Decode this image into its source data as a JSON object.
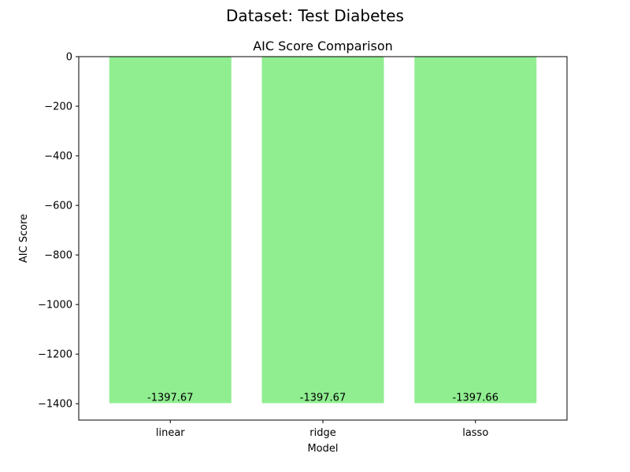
{
  "suptitle": "Dataset: Test Diabetes",
  "chart_data": {
    "type": "bar",
    "title": "AIC Score Comparison",
    "xlabel": "Model",
    "ylabel": "AIC Score",
    "categories": [
      "linear",
      "ridge",
      "lasso"
    ],
    "values": [
      -1397.67,
      -1397.67,
      -1397.66
    ],
    "value_labels": [
      "-1397.67",
      "-1397.67",
      "-1397.66"
    ],
    "ylim": [
      -1466,
      0
    ],
    "yticks": [
      0,
      -200,
      -400,
      -600,
      -800,
      -1000,
      -1200,
      -1400
    ],
    "ytick_labels": [
      "0",
      "−200",
      "−400",
      "−600",
      "−800",
      "−1000",
      "−1200",
      "−1400"
    ],
    "bar_color": "#90ee90",
    "grid": false,
    "legend": "none"
  }
}
